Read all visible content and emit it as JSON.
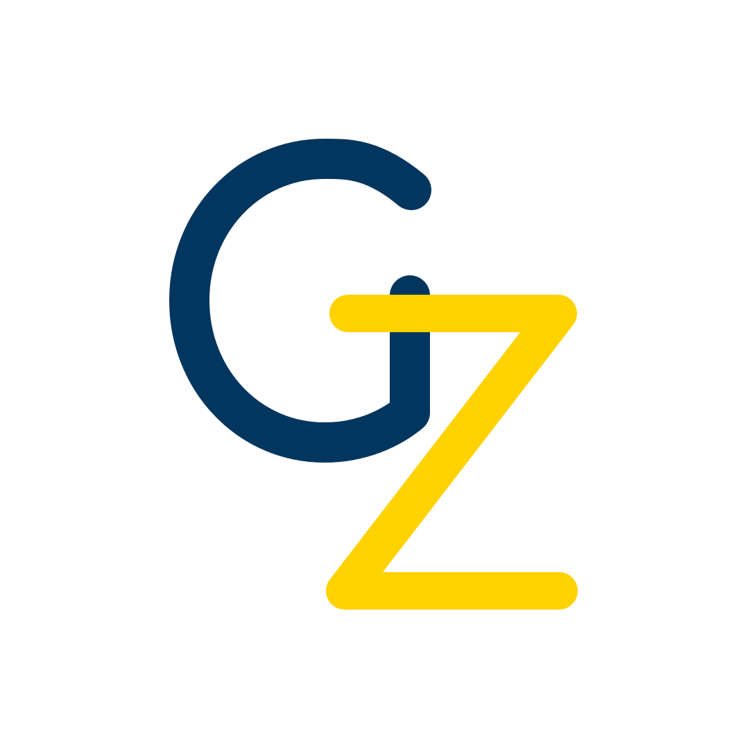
{
  "logo": {
    "letters": [
      "G",
      "Z"
    ],
    "colors": {
      "background": "#ffffff",
      "letter_g": "#02365F",
      "letter_z": "#FFD200"
    }
  }
}
